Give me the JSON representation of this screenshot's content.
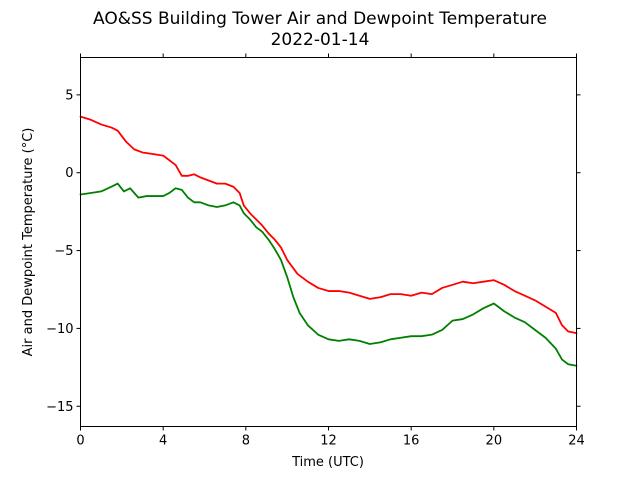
{
  "chart_data": {
    "type": "line",
    "title": "AO&SS Building Tower Air and Dewpoint Temperature",
    "subtitle": "2022-01-14",
    "xlabel": "Time (UTC)",
    "ylabel": "Air and Dewpoint Temperature (°C)",
    "xlim": [
      0,
      24
    ],
    "ylim": [
      -16.3,
      7.4
    ],
    "xticks": [
      0,
      4,
      8,
      12,
      16,
      20,
      24
    ],
    "xtick_labels": [
      "0",
      "4",
      "8",
      "12",
      "16",
      "20",
      "24"
    ],
    "yticks": [
      5,
      0,
      -5,
      -10,
      -15
    ],
    "ytick_labels": [
      "5",
      "0",
      "−5",
      "−10",
      "−15"
    ],
    "grid": false,
    "series": [
      {
        "color": "#ff0000",
        "x": [
          0,
          0.5,
          1,
          1.5,
          1.8,
          2.2,
          2.6,
          3,
          3.5,
          4,
          4.3,
          4.6,
          4.9,
          5.2,
          5.5,
          5.8,
          6.2,
          6.6,
          7,
          7.4,
          7.7,
          7.9,
          8.2,
          8.5,
          8.8,
          9.1,
          9.4,
          9.7,
          10,
          10.5,
          11,
          11.5,
          12,
          12.5,
          13,
          13.5,
          14,
          14.5,
          15,
          15.5,
          16,
          16.5,
          17,
          17.5,
          18,
          18.5,
          19,
          19.5,
          20,
          20.5,
          21,
          21.5,
          22,
          22.5,
          23,
          23.3,
          23.6,
          24
        ],
        "y": [
          3.6,
          3.4,
          3.1,
          2.9,
          2.7,
          2.0,
          1.5,
          1.3,
          1.2,
          1.1,
          0.8,
          0.5,
          -0.2,
          -0.2,
          -0.1,
          -0.3,
          -0.5,
          -0.7,
          -0.7,
          -0.9,
          -1.3,
          -2.1,
          -2.6,
          -3.0,
          -3.4,
          -3.9,
          -4.3,
          -4.8,
          -5.6,
          -6.5,
          -7.0,
          -7.4,
          -7.6,
          -7.6,
          -7.7,
          -7.9,
          -8.1,
          -8.0,
          -7.8,
          -7.8,
          -7.9,
          -7.7,
          -7.8,
          -7.4,
          -7.2,
          -7.0,
          -7.1,
          -7.0,
          -6.9,
          -7.2,
          -7.6,
          -7.9,
          -8.2,
          -8.6,
          -9.0,
          -9.8,
          -10.2,
          -10.3
        ]
      },
      {
        "color": "#008000",
        "x": [
          0,
          0.5,
          1,
          1.5,
          1.8,
          2.1,
          2.4,
          2.8,
          3.2,
          3.6,
          4,
          4.3,
          4.6,
          4.9,
          5.2,
          5.5,
          5.8,
          6.2,
          6.6,
          7,
          7.4,
          7.7,
          7.9,
          8.2,
          8.5,
          8.8,
          9.1,
          9.4,
          9.7,
          10,
          10.3,
          10.6,
          11,
          11.5,
          12,
          12.5,
          13,
          13.5,
          14,
          14.5,
          15,
          15.5,
          16,
          16.5,
          17,
          17.5,
          18,
          18.5,
          19,
          19.5,
          20,
          20.5,
          21,
          21.5,
          22,
          22.5,
          23,
          23.3,
          23.6,
          24
        ],
        "y": [
          -1.4,
          -1.3,
          -1.2,
          -0.9,
          -0.7,
          -1.2,
          -1.0,
          -1.6,
          -1.5,
          -1.5,
          -1.5,
          -1.3,
          -1.0,
          -1.1,
          -1.6,
          -1.9,
          -1.9,
          -2.1,
          -2.2,
          -2.1,
          -1.9,
          -2.1,
          -2.6,
          -3.0,
          -3.5,
          -3.8,
          -4.3,
          -4.9,
          -5.6,
          -6.7,
          -8.0,
          -9.0,
          -9.8,
          -10.4,
          -10.7,
          -10.8,
          -10.7,
          -10.8,
          -11.0,
          -10.9,
          -10.7,
          -10.6,
          -10.5,
          -10.5,
          -10.4,
          -10.1,
          -9.5,
          -9.4,
          -9.1,
          -8.7,
          -8.4,
          -8.9,
          -9.3,
          -9.6,
          -10.1,
          -10.6,
          -11.3,
          -12.0,
          -12.3,
          -12.4
        ]
      }
    ]
  }
}
